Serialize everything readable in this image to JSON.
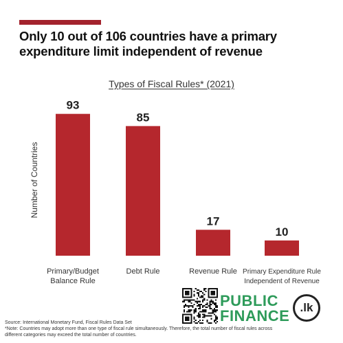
{
  "headline": {
    "line1": "Only 10 out of 106 countries have a primary",
    "line2": "expenditure limit independent of revenue"
  },
  "chart_data": {
    "type": "bar",
    "title": "Types of Fiscal Rules* (2021)",
    "ylabel": "Number of Countries",
    "xlabel": "",
    "categories": [
      [
        "Primary/Budget",
        "Balance Rule"
      ],
      [
        "Debt Rule"
      ],
      [
        "Revenue Rule"
      ],
      [
        "Primary Expenditure Rule",
        "Independent of Revenue"
      ]
    ],
    "values": [
      93,
      85,
      17,
      10
    ],
    "data_labels": [
      "93",
      "85",
      "17",
      "10"
    ],
    "ylim": [
      0,
      100
    ],
    "grid": false,
    "bar_color": "#b5272d"
  },
  "footer": {
    "source": "Source: International Monetary Fund, Fiscal Rules Data Set",
    "note_line1": "*Note: Countries may adopt more than one type of fiscal rule simultaneously. Therefore, the total number of fiscal rules across",
    "note_line2": "different categories may exceed the total number of countries."
  },
  "brand": {
    "line1": "PUBLIC",
    "line2": "FINANCE",
    "badge": ".lk",
    "color": "#2e9b5a"
  }
}
